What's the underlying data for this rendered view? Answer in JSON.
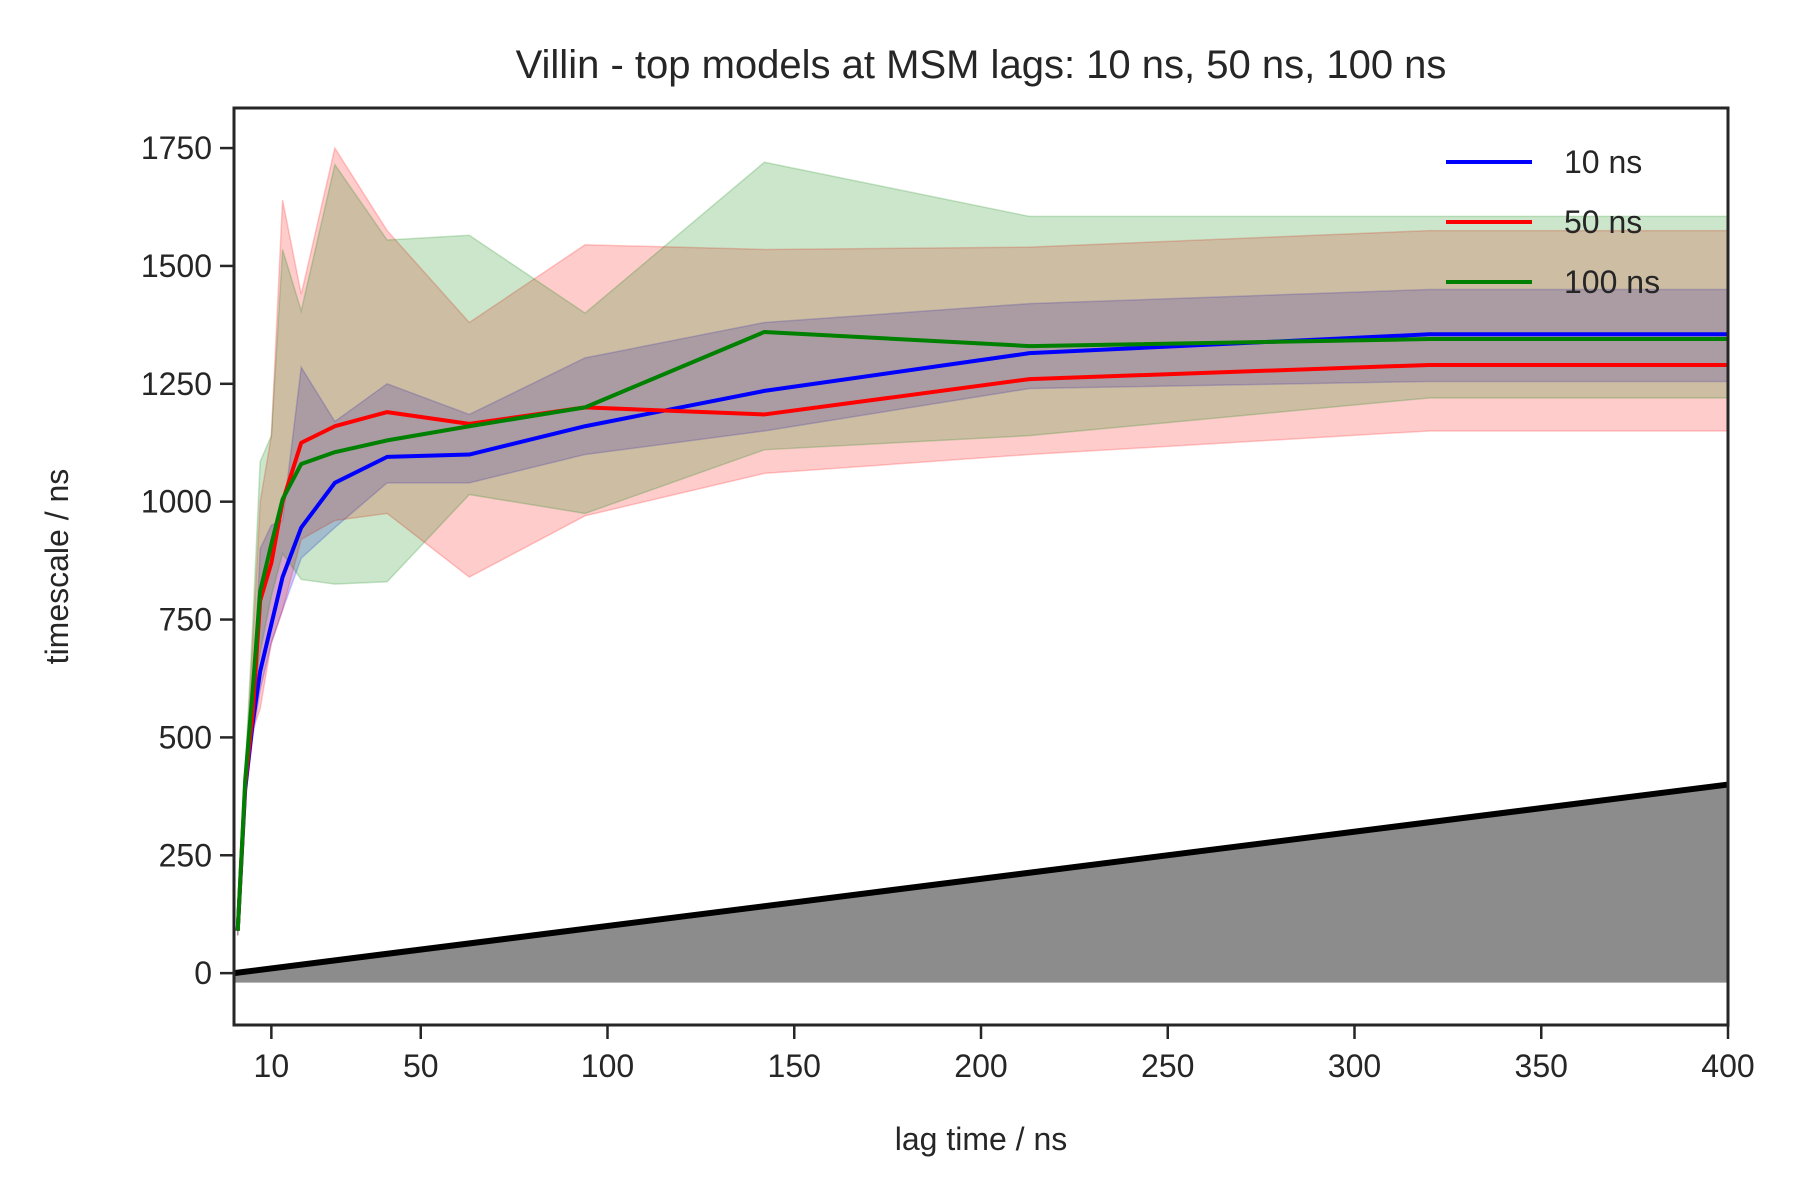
{
  "chart_data": {
    "type": "line",
    "title": "Villin - top models at MSM lags: 10 ns, 50 ns, 100 ns",
    "xlabel": "lag time / ns",
    "ylabel": "timescale / ns",
    "xlim": [
      0,
      400
    ],
    "ylim": [
      -110,
      1835
    ],
    "xticks": [
      10,
      50,
      100,
      150,
      200,
      250,
      300,
      350,
      400
    ],
    "yticks": [
      0,
      250,
      500,
      750,
      1000,
      1250,
      1500,
      1750
    ],
    "grid": false,
    "legend_position": "top-right",
    "x": [
      1,
      3,
      5,
      7,
      10,
      13,
      18,
      27,
      41,
      63,
      94,
      142,
      213,
      320,
      400
    ],
    "series": [
      {
        "name": "10 ns",
        "color": "#0000ff",
        "values": [
          90,
          390,
          530,
          640,
          740,
          840,
          945,
          1040,
          1095,
          1100,
          1160,
          1235,
          1315,
          1355,
          1355
        ],
        "lower": [
          80,
          370,
          500,
          600,
          700,
          770,
          880,
          945,
          1040,
          1040,
          1100,
          1150,
          1240,
          1255,
          1255
        ],
        "upper": [
          100,
          410,
          560,
          900,
          950,
          960,
          1285,
          1170,
          1250,
          1185,
          1305,
          1380,
          1420,
          1450,
          1450
        ]
      },
      {
        "name": "50 ns",
        "color": "#ff0000",
        "values": [
          90,
          400,
          550,
          790,
          870,
          1000,
          1125,
          1160,
          1190,
          1165,
          1200,
          1185,
          1260,
          1290,
          1290
        ],
        "lower": [
          80,
          380,
          515,
          560,
          700,
          770,
          920,
          960,
          975,
          840,
          970,
          1060,
          1100,
          1150,
          1150
        ],
        "upper": [
          100,
          420,
          700,
          1000,
          1140,
          1640,
          1440,
          1750,
          1575,
          1380,
          1545,
          1535,
          1540,
          1575,
          1575
        ]
      },
      {
        "name": "100 ns",
        "color": "#008000",
        "values": [
          90,
          410,
          600,
          810,
          910,
          1005,
          1080,
          1105,
          1130,
          1160,
          1200,
          1360,
          1330,
          1345,
          1345
        ],
        "lower": [
          80,
          390,
          560,
          680,
          800,
          890,
          835,
          825,
          830,
          1015,
          975,
          1110,
          1140,
          1220,
          1220
        ],
        "upper": [
          100,
          430,
          740,
          1085,
          1140,
          1535,
          1405,
          1715,
          1555,
          1565,
          1400,
          1720,
          1605,
          1605,
          1605
        ]
      }
    ],
    "reference_line": {
      "x": [
        1,
        400
      ],
      "values": [
        1,
        400
      ],
      "fill_to": -20,
      "line_color": "#000000",
      "fill_color": "#8c8c8c"
    }
  }
}
